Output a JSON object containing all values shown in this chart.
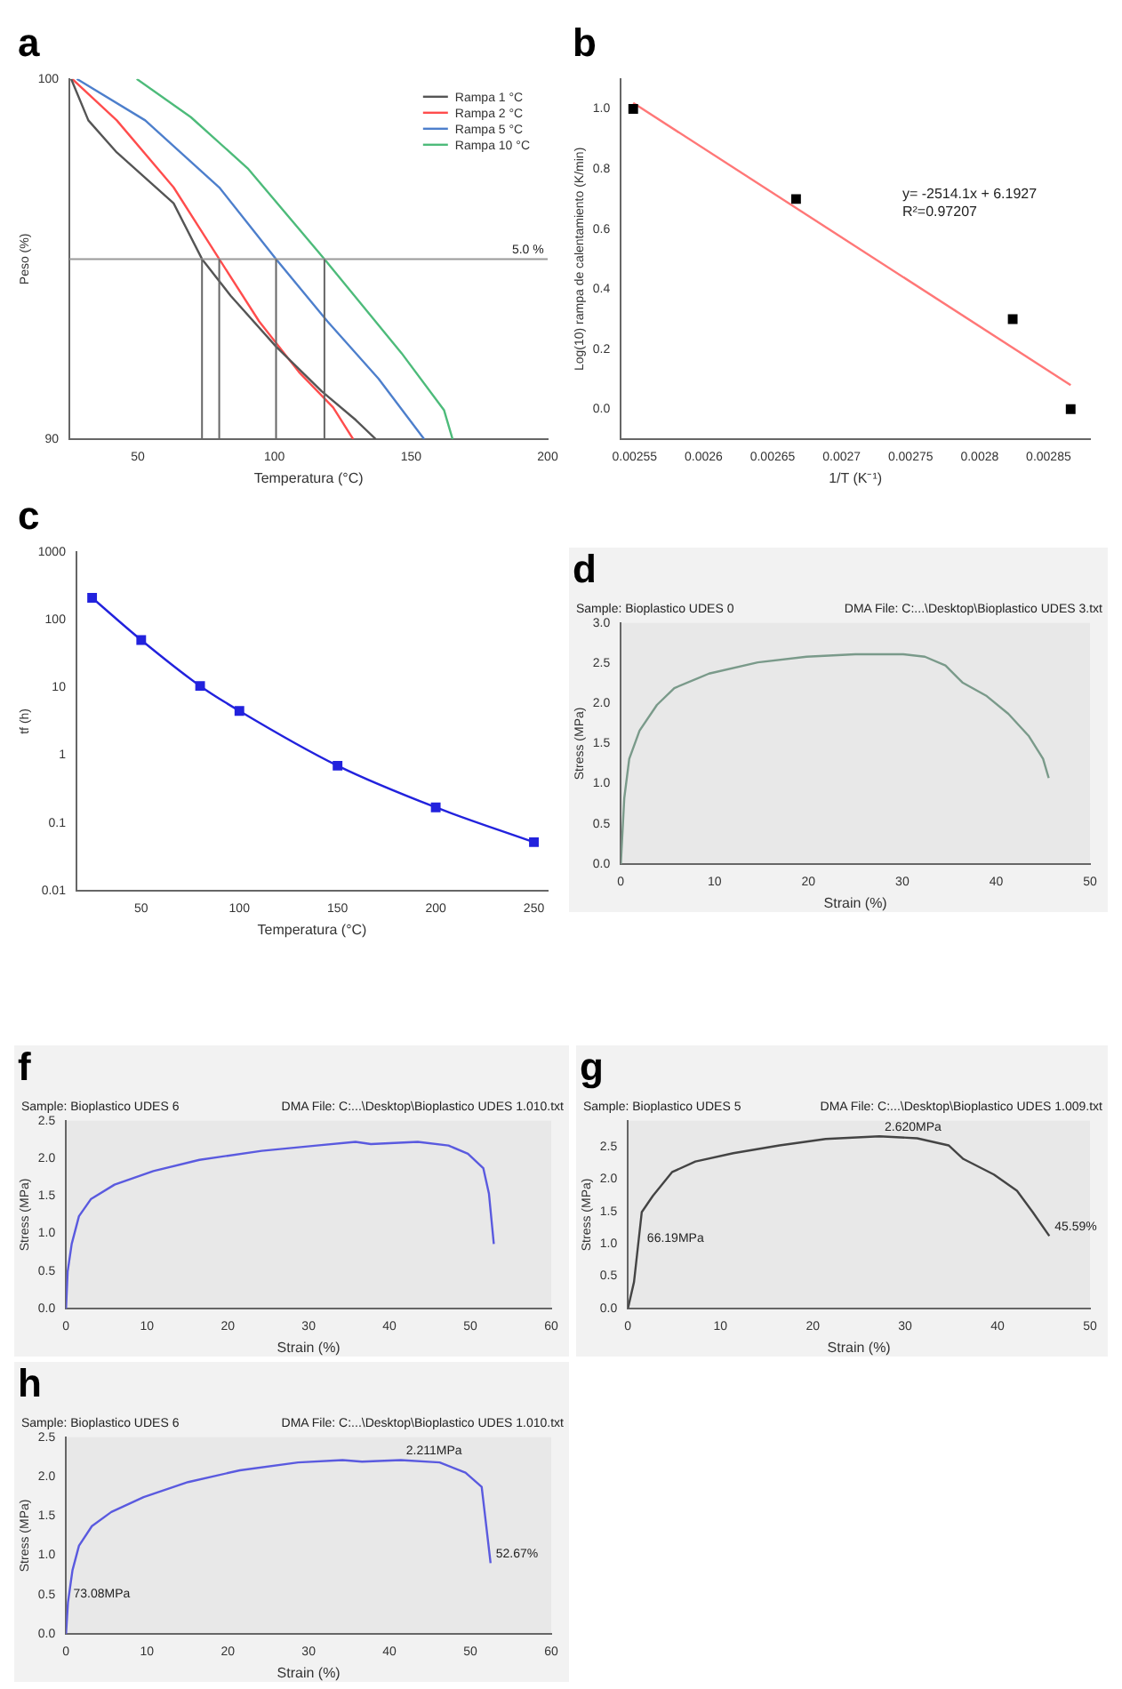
{
  "chart_data": [
    {
      "type": "line",
      "title": "a",
      "xlabel": "Temperatura (°C)",
      "ylabel": "Peso (%)",
      "xlim": [
        25,
        200
      ],
      "ylim": [
        90,
        100
      ],
      "xticks": [
        50,
        100,
        150,
        200
      ],
      "yticks": [
        90,
        100
      ],
      "legend": "top right",
      "series": [
        {
          "name": "Rampa 1 °C",
          "color": "#555555",
          "x": [
            25.6,
            31.9,
            42.3,
            63.1,
            73.5,
            84,
            100.6,
            117.3,
            129.8,
            137.1
          ],
          "values": [
            100,
            98.85,
            97.96,
            96.55,
            95,
            93.98,
            92.57,
            91.33,
            90.53,
            90
          ]
        },
        {
          "name": "Rampa 2 °C",
          "color": "#ff4d4d",
          "x": [
            26,
            42.3,
            63.1,
            79.8,
            94.4,
            109,
            121.5,
            128.8
          ],
          "values": [
            100,
            98.85,
            96.99,
            95,
            93.27,
            91.86,
            90.88,
            90
          ]
        },
        {
          "name": "Rampa 5 °C",
          "color": "#4d7fcc",
          "x": [
            27.7,
            52.7,
            79.8,
            100.6,
            119.4,
            138.1,
            154.8
          ],
          "values": [
            100,
            98.85,
            96.99,
            95,
            93.27,
            91.68,
            90
          ]
        },
        {
          "name": "Rampa 10 °C",
          "color": "#4dbb7a",
          "x": [
            49.6,
            69.4,
            90.2,
            118.3,
            146.5,
            162.1,
            165.2
          ],
          "values": [
            100,
            98.94,
            97.52,
            95,
            92.39,
            90.8,
            90
          ]
        }
      ],
      "annotations": [
        {
          "text": "5.0 %",
          "x": 185,
          "y": 95
        }
      ],
      "ref_lines": [
        {
          "axis": "y",
          "value": 95,
          "label": null,
          "color": "#999999"
        },
        {
          "axis": "x",
          "value": 73.5,
          "label": null,
          "color": "#666666"
        },
        {
          "axis": "x",
          "value": 79.8,
          "label": null,
          "color": "#666666"
        },
        {
          "axis": "x",
          "value": 100.6,
          "label": null,
          "color": "#666666"
        },
        {
          "axis": "x",
          "value": 118.3,
          "label": null,
          "color": "#666666"
        }
      ]
    },
    {
      "type": "scatter",
      "title": "b",
      "xlabel": "1/T (K⁻¹)",
      "ylabel": "Log(10) rampa de calentamiento (K/min)",
      "xlim": [
        0.00254,
        0.00288
      ],
      "ylim": [
        -0.1,
        1.1
      ],
      "xticks": [
        0.00255,
        0.0026,
        0.00265,
        0.0027,
        0.00275,
        0.0028,
        0.00285
      ],
      "yticks": [
        {
          "value": 0,
          "label": "0.0"
        },
        {
          "value": 0.2,
          "label": "0.2"
        },
        {
          "value": 0.4,
          "label": "0.4"
        },
        {
          "value": 0.6,
          "label": "0.6"
        },
        {
          "value": 0.8,
          "label": "0.8"
        },
        {
          "value": 1,
          "label": "1.0"
        }
      ],
      "series": [
        {
          "marker": "square",
          "color": "#000000",
          "x": [
            0.002549,
            0.002667,
            0.002824,
            0.002866
          ],
          "values": [
            1.0,
            0.7,
            0.3,
            0.0
          ]
        },
        {
          "type": "line",
          "color": "#ff7777",
          "x": [
            0.002549,
            0.002866
          ],
          "values": [
            1.02,
            0.08
          ]
        }
      ],
      "annotations": [
        "y= -2514.1x + 6.1927",
        "R²=0.97207"
      ]
    },
    {
      "type": "line",
      "title": "c",
      "xlabel": "Temperatura (°C)",
      "ylabel": "tf (h)",
      "xlim": [
        17,
        257
      ],
      "ylim": [
        0.01,
        1000
      ],
      "log": true,
      "xticks": [
        50,
        100,
        150,
        200,
        250
      ],
      "yticks": [
        0.01,
        0.1,
        1,
        10,
        100,
        1000
      ],
      "marker": "square",
      "series": [
        {
          "color": "#2222dd",
          "x": [
            25,
            50,
            80,
            100,
            150,
            200,
            250
          ],
          "values": [
            210,
            50,
            10.5,
            4.5,
            0.7,
            0.17,
            0.052
          ]
        }
      ]
    },
    {
      "type": "line",
      "title": "d",
      "subtitle": "Sample: Bioplastico UDES 0",
      "xlabel": "Strain (%)",
      "ylabel": "Stress (MPa)",
      "xlim": [
        0,
        50
      ],
      "ylim": [
        0,
        3
      ],
      "xticks": [
        0,
        10,
        20,
        30,
        40,
        50
      ],
      "yticks": [
        {
          "value": 0,
          "label": "0.0"
        },
        {
          "value": 0.5,
          "label": "0.5"
        },
        {
          "value": 1,
          "label": "1.0"
        },
        {
          "value": 1.5,
          "label": "1.5"
        },
        {
          "value": 2,
          "label": "2.0"
        },
        {
          "value": 2.5,
          "label": "2.5"
        },
        {
          "value": 3,
          "label": "3.0"
        }
      ],
      "series": [
        {
          "color": "#7a9a8a",
          "x": [
            0,
            0.37,
            0.9,
            2,
            3.85,
            5.7,
            9.4,
            14.6,
            19.8,
            25,
            30.1,
            32.4,
            34.6,
            36.4,
            39,
            41.3,
            43.5,
            45,
            45.6
          ],
          "values": [
            0,
            0.82,
            1.31,
            1.66,
            1.98,
            2.19,
            2.37,
            2.51,
            2.58,
            2.61,
            2.61,
            2.58,
            2.47,
            2.26,
            2.09,
            1.87,
            1.59,
            1.31,
            1.07
          ]
        }
      ],
      "annotations": [
        "DMA File: C:...\\Desktop\\Bioplastico UDES 3.txt"
      ]
    },
    {
      "type": "line",
      "title": "f",
      "subtitle": "Sample: Bioplastico UDES 6",
      "xlabel": "Strain (%)",
      "ylabel": "Stress (MPa)",
      "xlim": [
        0,
        60
      ],
      "ylim": [
        0,
        2.5
      ],
      "xticks": [
        0,
        10,
        20,
        30,
        40,
        50,
        60
      ],
      "yticks": [
        {
          "value": 0,
          "label": "0.0"
        },
        {
          "value": 0.5,
          "label": "0.5"
        },
        {
          "value": 1,
          "label": "1.0"
        },
        {
          "value": 1.5,
          "label": "1.5"
        },
        {
          "value": 2,
          "label": "2.0"
        },
        {
          "value": 2.5,
          "label": "2.5"
        }
      ],
      "series": [
        {
          "color": "#5a5adf",
          "x": [
            0,
            0.2,
            0.7,
            1.6,
            3.1,
            6,
            10.8,
            16.5,
            24.2,
            31,
            35.8,
            37.7,
            43.5,
            47.3,
            49.7,
            51.6,
            52.3,
            52.9
          ],
          "values": [
            0,
            0.49,
            0.86,
            1.23,
            1.46,
            1.65,
            1.83,
            1.98,
            2.1,
            2.17,
            2.22,
            2.19,
            2.22,
            2.17,
            2.06,
            1.87,
            1.53,
            0.86
          ]
        }
      ],
      "annotations": [
        "DMA File: C:...\\Desktop\\Bioplastico UDES 1.010.txt"
      ]
    },
    {
      "type": "line",
      "title": "g",
      "subtitle": "Sample: Bioplastico UDES 5",
      "xlabel": "Strain (%)",
      "ylabel": "Stress (MPa)",
      "xlim": [
        0,
        50
      ],
      "ylim": [
        0,
        2.9
      ],
      "xticks": [
        0,
        10,
        20,
        30,
        40,
        50
      ],
      "yticks": [
        {
          "value": 0,
          "label": "0.0"
        },
        {
          "value": 0.5,
          "label": "0.5"
        },
        {
          "value": 1,
          "label": "1.0"
        },
        {
          "value": 1.5,
          "label": "1.5"
        },
        {
          "value": 2,
          "label": "2.0"
        },
        {
          "value": 2.5,
          "label": "2.5"
        }
      ],
      "series": [
        {
          "color": "#444444",
          "x": [
            0,
            0.66,
            1.5,
            2.7,
            4.8,
            7.3,
            11.4,
            16.4,
            21.4,
            27.2,
            31.3,
            34.7,
            36.3,
            39.6,
            42.1,
            43.8,
            45.6
          ],
          "values": [
            0,
            0.41,
            1.49,
            1.74,
            2.11,
            2.27,
            2.4,
            2.52,
            2.62,
            2.66,
            2.63,
            2.52,
            2.31,
            2.07,
            1.82,
            1.49,
            1.12
          ]
        }
      ],
      "annotations": [
        "DMA File: C:...\\Desktop\\Bioplastico UDES 1.009.txt",
        {
          "text": "2.620MPa",
          "x": 27.2,
          "y": 2.66
        },
        {
          "text": "66.19MPa",
          "x": 1.5,
          "y": 0.95
        },
        {
          "text": "45.59%",
          "x": 45.6,
          "y": 1.12
        }
      ]
    },
    {
      "type": "line",
      "title": "h",
      "subtitle": "Sample: Bioplastico UDES 6",
      "xlabel": "Strain (%)",
      "ylabel": "Stress (MPa)",
      "xlim": [
        0,
        60
      ],
      "ylim": [
        0,
        2.5
      ],
      "xticks": [
        0,
        10,
        20,
        30,
        40,
        50,
        60
      ],
      "yticks": [
        {
          "value": 0,
          "label": "0.0"
        },
        {
          "value": 0.5,
          "label": "0.5"
        },
        {
          "value": 1,
          "label": "1.0"
        },
        {
          "value": 1.5,
          "label": "1.5"
        },
        {
          "value": 2,
          "label": "2.0"
        },
        {
          "value": 2.5,
          "label": "2.5"
        }
      ],
      "series": [
        {
          "color": "#5a5adf",
          "x": [
            0,
            0.24,
            0.8,
            1.6,
            3.2,
            5.6,
            9.6,
            15.1,
            21.5,
            28.7,
            34.2,
            36.6,
            41.4,
            46.2,
            49.4,
            51.4,
            51.9,
            52.5
          ],
          "values": [
            0,
            0.4,
            0.81,
            1.12,
            1.37,
            1.55,
            1.74,
            1.93,
            2.08,
            2.18,
            2.21,
            2.19,
            2.21,
            2.18,
            2.05,
            1.87,
            1.43,
            0.9
          ]
        }
      ],
      "annotations": [
        "DMA File: C:...\\Desktop\\Bioplastico UDES 1.010.txt",
        {
          "text": "2.211MPa",
          "x": 41.4,
          "y": 2.21
        },
        {
          "text": "73.08MPa",
          "x": 0.24,
          "y": 0.4
        },
        {
          "text": "52.67%",
          "x": 52.5,
          "y": 0.9
        }
      ]
    }
  ]
}
